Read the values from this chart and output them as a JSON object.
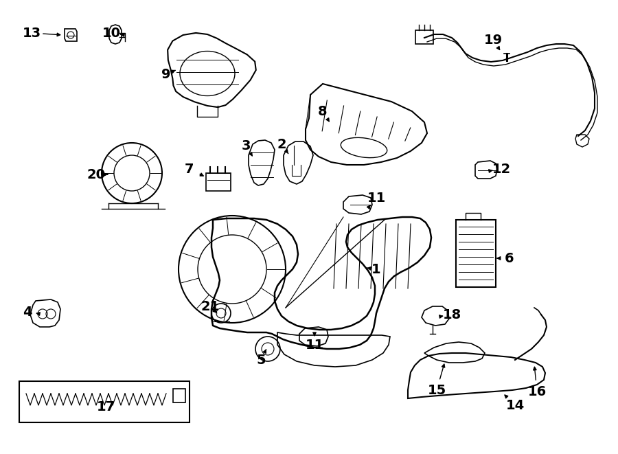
{
  "fig_width": 9.0,
  "fig_height": 6.61,
  "dpi": 100,
  "bg": "#ffffff",
  "lc": "#000000"
}
